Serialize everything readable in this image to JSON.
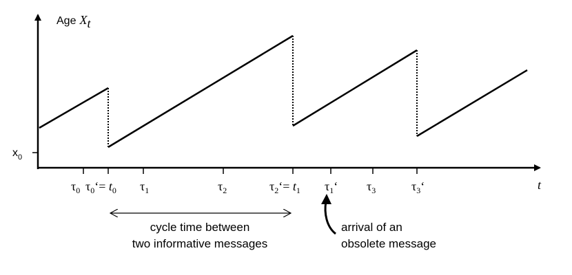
{
  "y_axis_label": "Age",
  "y_axis_var": "X",
  "y_axis_sub": "t",
  "x_axis_label": "t",
  "y_tick_label": "x",
  "y_tick_sub": "0",
  "ticks": {
    "tau0": {
      "sym": "τ",
      "sub": "0"
    },
    "tau0p": {
      "sym": "τ",
      "sub": "0",
      "prime": "‘",
      "eq": "= ",
      "t": "t",
      "tsub": "0"
    },
    "tau1": {
      "sym": "τ",
      "sub": "1"
    },
    "tau2": {
      "sym": "τ",
      "sub": "2"
    },
    "tau2p": {
      "sym": "τ",
      "sub": "2",
      "prime": "‘",
      "eq": "= ",
      "t": "t",
      "tsub": "1"
    },
    "tau1p": {
      "sym": "τ",
      "sub": "1",
      "prime": "‘"
    },
    "tau3": {
      "sym": "τ",
      "sub": "3"
    },
    "tau3p": {
      "sym": "τ",
      "sub": "3",
      "prime": "‘"
    }
  },
  "cycle_annotation": [
    "cycle time between",
    "two informative messages"
  ],
  "obsolete_annotation": [
    "arrival of an",
    "obsolete message"
  ]
}
